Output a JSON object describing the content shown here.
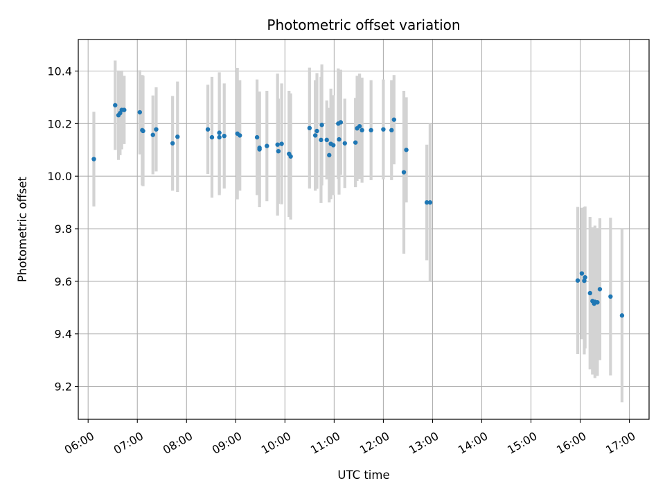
{
  "chart_data": {
    "type": "scatter",
    "title": "Photometric offset variation",
    "xlabel": "UTC time",
    "ylabel": "Photometric offset",
    "x_unit": "hour of day (UTC)",
    "xlim": [
      "05:48",
      "17:24"
    ],
    "ylim": [
      9.075,
      10.52
    ],
    "x_ticks": [
      "06:00",
      "07:00",
      "08:00",
      "09:00",
      "10:00",
      "11:00",
      "12:00",
      "13:00",
      "14:00",
      "15:00",
      "16:00",
      "17:00"
    ],
    "y_ticks": [
      "9.2",
      "9.4",
      "9.6",
      "9.8",
      "10.0",
      "10.2",
      "10.4"
    ],
    "grid": true,
    "legend": "none",
    "colors": {
      "points": "#1f77b4",
      "errorbars": "#d3d3d3",
      "grid": "#b0b0b0"
    },
    "series": [
      {
        "marker": "dot",
        "x": [
          "06:07",
          "06:33",
          "06:37",
          "06:39",
          "06:41",
          "06:44",
          "07:03",
          "07:06",
          "07:07",
          "07:19",
          "07:23",
          "07:43",
          "07:49",
          "08:26",
          "08:31",
          "08:40",
          "08:40",
          "08:46",
          "09:02",
          "09:05",
          "09:26",
          "09:29",
          "09:29",
          "09:38",
          "09:51",
          "09:52",
          "09:56",
          "10:05",
          "10:07",
          "10:30",
          "10:37",
          "10:39",
          "10:44",
          "10:45",
          "10:51",
          "10:54",
          "10:56",
          "10:59",
          "11:05",
          "11:06",
          "11:08",
          "11:13",
          "11:26",
          "11:28",
          "11:31",
          "11:34",
          "11:45",
          "12:00",
          "12:10",
          "12:13",
          "12:25",
          "12:28",
          "12:53",
          "12:57"
        ],
        "y": [
          10.065,
          10.27,
          10.232,
          10.24,
          10.252,
          10.252,
          10.243,
          10.175,
          10.172,
          10.157,
          10.178,
          10.125,
          10.15,
          10.178,
          10.148,
          10.165,
          10.148,
          10.153,
          10.162,
          10.155,
          10.148,
          10.108,
          10.102,
          10.115,
          10.12,
          10.095,
          10.123,
          10.085,
          10.075,
          10.183,
          10.155,
          10.172,
          10.138,
          10.195,
          10.138,
          10.08,
          10.123,
          10.118,
          10.2,
          10.14,
          10.205,
          10.125,
          10.128,
          10.182,
          10.19,
          10.175,
          10.175,
          10.178,
          10.175,
          10.215,
          10.015,
          10.1,
          9.9,
          9.9
        ],
        "err": [
          0.18,
          0.17,
          0.17,
          0.16,
          0.15,
          0.13,
          0.16,
          0.21,
          0.21,
          0.15,
          0.16,
          0.18,
          0.21,
          0.17,
          0.23,
          0.23,
          0.22,
          0.2,
          0.25,
          0.21,
          0.22,
          0.21,
          0.22,
          0.21,
          0.27,
          0.2,
          0.23,
          0.24,
          0.24,
          0.23,
          0.21,
          0.22,
          0.24,
          0.23,
          0.15,
          0.18,
          0.21,
          0.19,
          0.21,
          0.21,
          0.2,
          0.17,
          0.17,
          0.2,
          0.2,
          0.2,
          0.19,
          0.19,
          0.19,
          0.17,
          0.31,
          0.2,
          0.22,
          0.3
        ]
      },
      {
        "marker": "dot",
        "x": [
          "15:57",
          "16:02",
          "16:05",
          "16:06",
          "16:12",
          "16:15",
          "16:17",
          "16:18",
          "16:21",
          "16:24",
          "16:37",
          "16:51"
        ],
        "y": [
          9.603,
          9.63,
          9.602,
          9.615,
          9.555,
          9.525,
          9.515,
          9.522,
          9.52,
          9.57,
          9.542,
          9.47
        ],
        "err": [
          0.28,
          0.25,
          0.28,
          0.27,
          0.29,
          0.28,
          0.27,
          0.29,
          0.28,
          0.27,
          0.3,
          0.33
        ]
      }
    ]
  }
}
